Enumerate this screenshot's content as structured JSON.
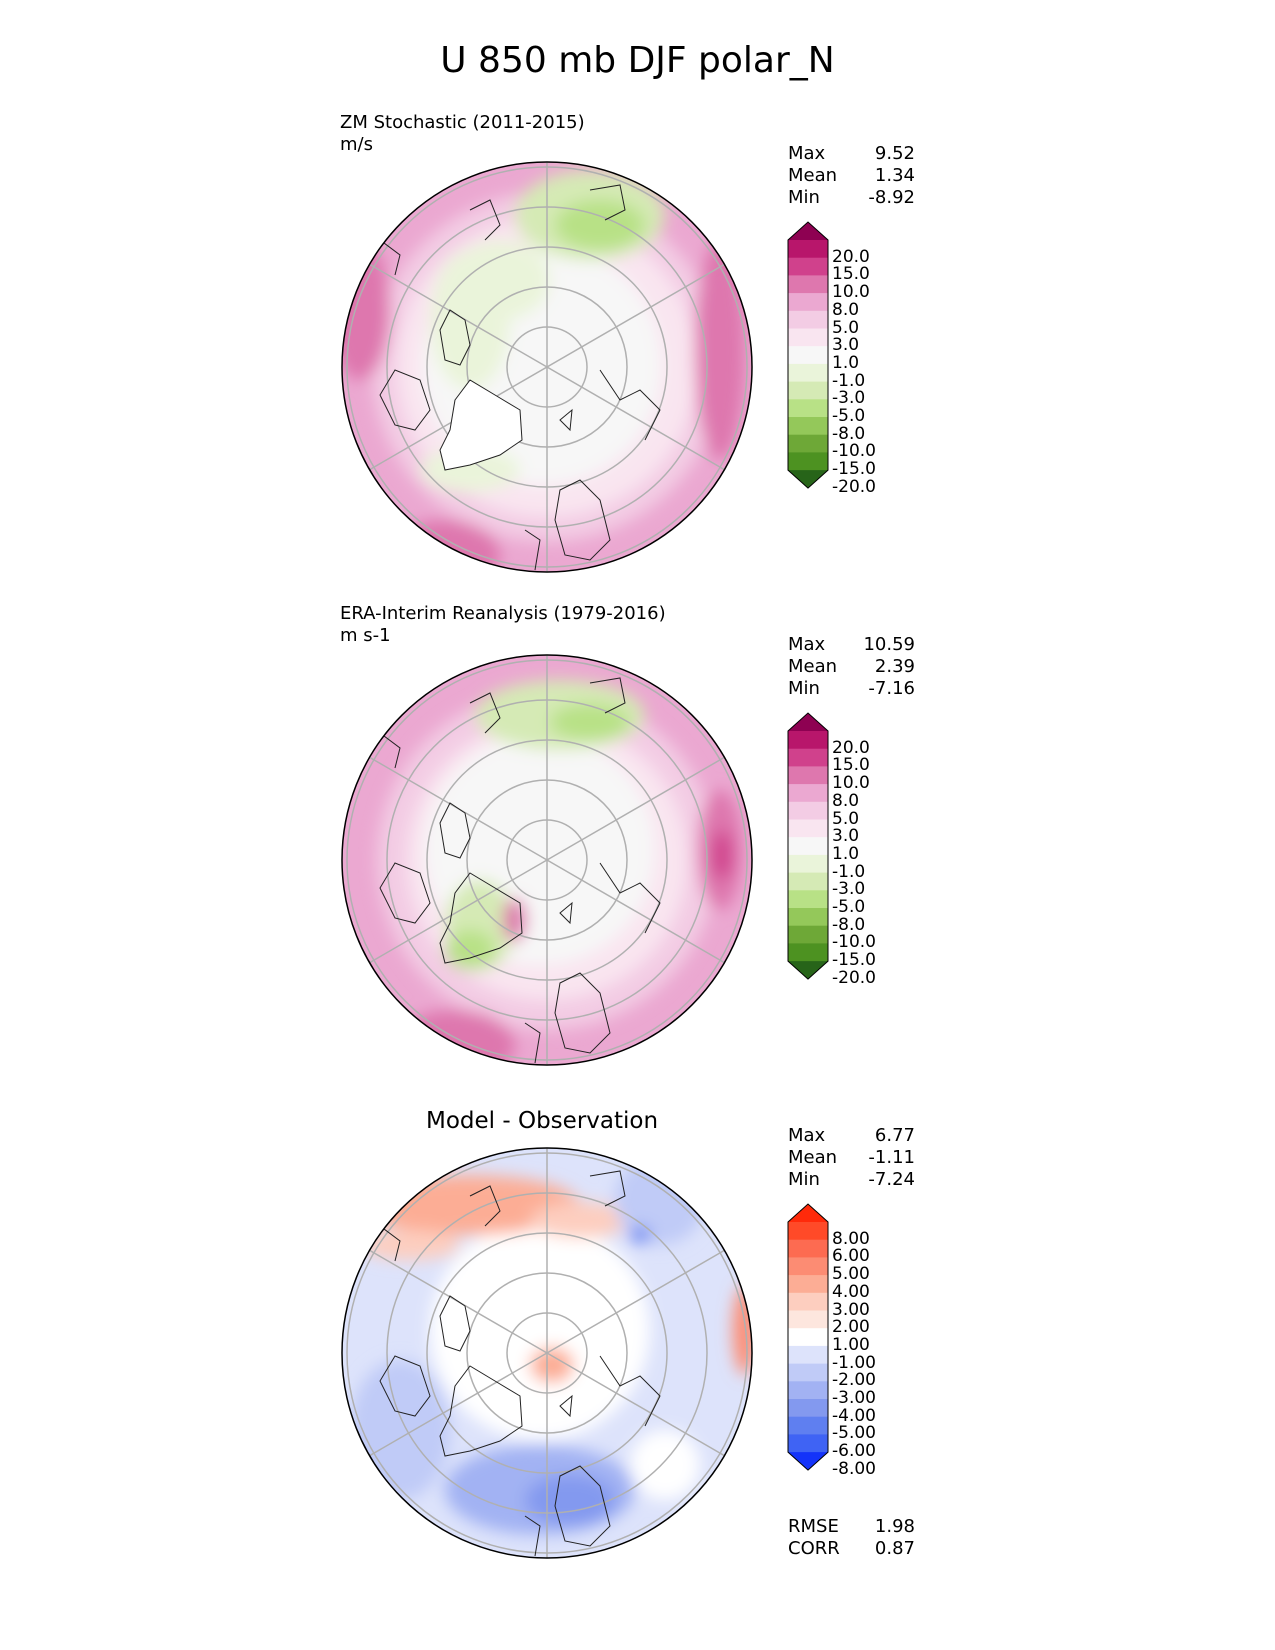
{
  "title": "U 850 mb DJF polar_N",
  "panels": [
    {
      "title": "ZM Stochastic (2011-2015)",
      "units": "m/s",
      "stats": [
        {
          "label": "Max",
          "value": "9.52"
        },
        {
          "label": "Mean",
          "value": "1.34"
        },
        {
          "label": "Min",
          "value": "-8.92"
        }
      ],
      "colorbar": {
        "labels": [
          "20.0",
          "15.0",
          "10.0",
          "8.0",
          "5.0",
          "3.0",
          "1.0",
          "-1.0",
          "-3.0",
          "-5.0",
          "-8.0",
          "-10.0",
          "-15.0",
          "-20.0"
        ],
        "colors": [
          "#8e0152",
          "#b8166b",
          "#d0418c",
          "#de77ae",
          "#eba8d1",
          "#f3cce4",
          "#f9e5f0",
          "#f7f7f7",
          "#eaf4da",
          "#d5eab5",
          "#b8e186",
          "#94c85a",
          "#6ea837",
          "#4d9221",
          "#276419"
        ]
      }
    },
    {
      "title": "ERA-Interim Reanalysis (1979-2016)",
      "units": "m s-1",
      "stats": [
        {
          "label": "Max",
          "value": "10.59"
        },
        {
          "label": "Mean",
          "value": "2.39"
        },
        {
          "label": "Min",
          "value": "-7.16"
        }
      ],
      "colorbar": {
        "labels": [
          "20.0",
          "15.0",
          "10.0",
          "8.0",
          "5.0",
          "3.0",
          "1.0",
          "-1.0",
          "-3.0",
          "-5.0",
          "-8.0",
          "-10.0",
          "-15.0",
          "-20.0"
        ],
        "colors": [
          "#8e0152",
          "#b8166b",
          "#d0418c",
          "#de77ae",
          "#eba8d1",
          "#f3cce4",
          "#f9e5f0",
          "#f7f7f7",
          "#eaf4da",
          "#d5eab5",
          "#b8e186",
          "#94c85a",
          "#6ea837",
          "#4d9221",
          "#276419"
        ]
      }
    },
    {
      "title": "Model - Observation",
      "units": "",
      "stats": [
        {
          "label": "Max",
          "value": "6.77"
        },
        {
          "label": "Mean",
          "value": "-1.11"
        },
        {
          "label": "Min",
          "value": "-7.24"
        }
      ],
      "extra_stats": [
        {
          "label": "RMSE",
          "value": "1.98"
        },
        {
          "label": "CORR",
          "value": "0.87"
        }
      ],
      "colorbar": {
        "labels": [
          "8.00",
          "6.00",
          "5.00",
          "4.00",
          "3.00",
          "2.00",
          "1.00",
          "-1.00",
          "-2.00",
          "-3.00",
          "-4.00",
          "-5.00",
          "-6.00",
          "-8.00"
        ],
        "colors": [
          "#ff2a0a",
          "#ff4a28",
          "#fd6b51",
          "#fc8c73",
          "#fcad95",
          "#fdcebf",
          "#fde6de",
          "#ffffff",
          "#dde3fb",
          "#c0cbf7",
          "#a2b2f3",
          "#8399ef",
          "#5f7ff0",
          "#3f63f4",
          "#1433f9"
        ]
      }
    }
  ]
}
